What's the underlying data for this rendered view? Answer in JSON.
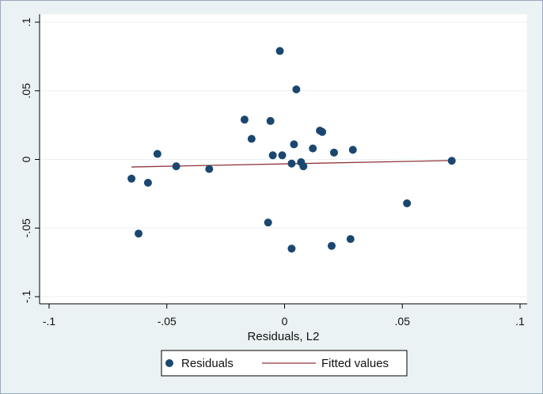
{
  "chart_data": {
    "type": "scatter",
    "title": "",
    "xlabel": "Residuals, L2",
    "ylabel": "",
    "xlim": [
      -0.1,
      0.1
    ],
    "ylim": [
      -0.1,
      0.1
    ],
    "x_ticks": [
      -0.1,
      -0.05,
      0,
      0.05,
      0.1
    ],
    "x_tick_labels": [
      "-.1",
      "-.05",
      "0",
      ".05",
      ".1"
    ],
    "y_ticks": [
      -0.1,
      -0.05,
      0,
      0.05,
      0.1
    ],
    "y_tick_labels": [
      "-.1",
      "-.05",
      "0",
      ".05",
      ".1"
    ],
    "grid": "horizontal",
    "legend_position": "bottom",
    "series": [
      {
        "name": "Residuals",
        "type": "scatter",
        "color": "#1a476f",
        "points": [
          [
            -0.065,
            -0.014
          ],
          [
            -0.062,
            -0.054
          ],
          [
            -0.058,
            -0.017
          ],
          [
            -0.054,
            0.004
          ],
          [
            -0.046,
            -0.005
          ],
          [
            -0.032,
            -0.007
          ],
          [
            -0.017,
            0.029
          ],
          [
            -0.014,
            0.015
          ],
          [
            -0.007,
            -0.046
          ],
          [
            -0.006,
            0.028
          ],
          [
            -0.005,
            0.003
          ],
          [
            -0.002,
            0.079
          ],
          [
            -0.001,
            0.003
          ],
          [
            0.003,
            -0.065
          ],
          [
            0.003,
            -0.003
          ],
          [
            0.004,
            0.011
          ],
          [
            0.005,
            0.051
          ],
          [
            0.007,
            -0.002
          ],
          [
            0.008,
            -0.005
          ],
          [
            0.012,
            0.008
          ],
          [
            0.015,
            0.021
          ],
          [
            0.016,
            0.02
          ],
          [
            0.02,
            -0.063
          ],
          [
            0.021,
            0.005
          ],
          [
            0.028,
            -0.058
          ],
          [
            0.029,
            0.007
          ],
          [
            0.052,
            -0.032
          ],
          [
            0.071,
            -0.001
          ]
        ]
      },
      {
        "name": "Fitted values",
        "type": "line",
        "color": "#90353b",
        "points": [
          [
            -0.065,
            -0.0055
          ],
          [
            0.071,
            -0.0008
          ]
        ]
      }
    ]
  }
}
